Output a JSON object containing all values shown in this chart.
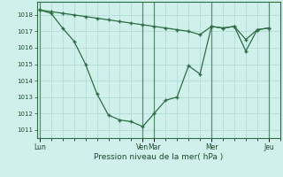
{
  "background_color": "#cff0eb",
  "grid_color": "#aad8d0",
  "line_color": "#2d6e45",
  "marker_color": "#2d6e45",
  "xlabel": "Pression niveau de la mer( hPa )",
  "ylim": [
    1010.5,
    1018.8
  ],
  "yticks": [
    1011,
    1012,
    1013,
    1014,
    1015,
    1016,
    1017,
    1018
  ],
  "day_labels": [
    "Lun",
    "Ven",
    "Mar",
    "Mer",
    "Jeu"
  ],
  "day_positions": [
    0,
    36,
    40,
    60,
    80
  ],
  "xlim": [
    -1,
    84
  ],
  "vline_positions": [
    0,
    36,
    40,
    60,
    80
  ],
  "series1_x": [
    0,
    4,
    8,
    12,
    16,
    20,
    24,
    28,
    32,
    36,
    40,
    44,
    48,
    52,
    56,
    60,
    64,
    68,
    72,
    76,
    80
  ],
  "series1_y": [
    1018.3,
    1018.1,
    1017.2,
    1016.4,
    1015.0,
    1013.2,
    1011.9,
    1011.6,
    1011.5,
    1011.2,
    1012.0,
    1012.8,
    1013.0,
    1014.9,
    1014.4,
    1017.3,
    1017.2,
    1017.3,
    1015.8,
    1017.1,
    1017.2
  ],
  "series2_x": [
    0,
    4,
    8,
    12,
    16,
    20,
    24,
    28,
    32,
    36,
    40,
    44,
    48,
    52,
    56,
    60,
    64,
    68,
    72,
    76,
    80
  ],
  "series2_y": [
    1018.3,
    1018.2,
    1018.1,
    1018.0,
    1017.9,
    1017.8,
    1017.7,
    1017.6,
    1017.5,
    1017.4,
    1017.3,
    1017.2,
    1017.1,
    1017.0,
    1016.8,
    1017.3,
    1017.2,
    1017.3,
    1016.5,
    1017.1,
    1017.2
  ]
}
